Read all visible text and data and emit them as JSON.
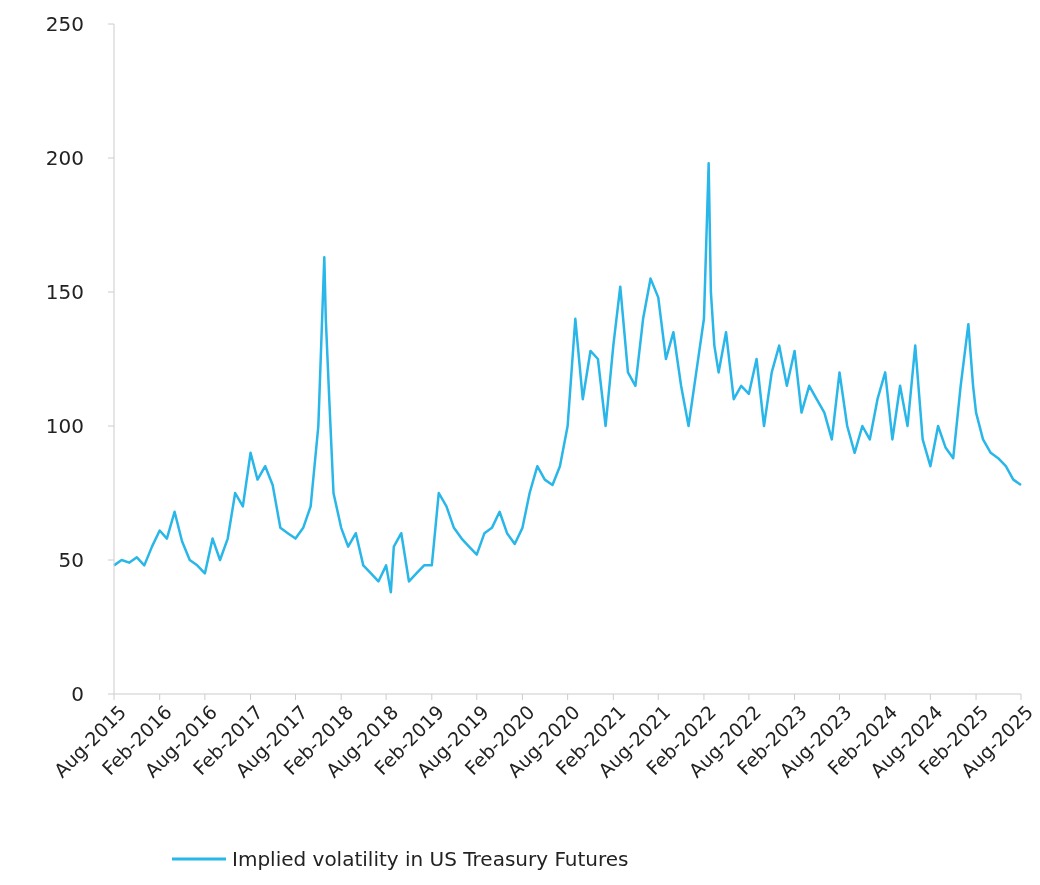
{
  "chart_data": {
    "type": "line",
    "legend": "bottom",
    "grid": false,
    "ylim": [
      0,
      250
    ],
    "yticks": [
      0,
      50,
      100,
      150,
      200,
      250
    ],
    "xlim": [
      "2015-08",
      "2025-08"
    ],
    "xticks": [
      {
        "value": "2015-08",
        "label": "Aug-2015"
      },
      {
        "value": "2016-02",
        "label": "Feb-2016"
      },
      {
        "value": "2016-08",
        "label": "Aug-2016"
      },
      {
        "value": "2017-02",
        "label": "Feb-2017"
      },
      {
        "value": "2017-08",
        "label": "Aug-2017"
      },
      {
        "value": "2018-02",
        "label": "Feb-2018"
      },
      {
        "value": "2018-08",
        "label": "Aug-2018"
      },
      {
        "value": "2019-02",
        "label": "Feb-2019"
      },
      {
        "value": "2019-08",
        "label": "Aug-2019"
      },
      {
        "value": "2020-02",
        "label": "Feb-2020"
      },
      {
        "value": "2020-08",
        "label": "Aug-2020"
      },
      {
        "value": "2021-02",
        "label": "Feb-2021"
      },
      {
        "value": "2021-08",
        "label": "Aug-2021"
      },
      {
        "value": "2022-02",
        "label": "Feb-2022"
      },
      {
        "value": "2022-08",
        "label": "Aug-2022"
      },
      {
        "value": "2023-02",
        "label": "Feb-2023"
      },
      {
        "value": "2023-08",
        "label": "Aug-2023"
      },
      {
        "value": "2024-02",
        "label": "Feb-2024"
      },
      {
        "value": "2024-08",
        "label": "Aug-2024"
      },
      {
        "value": "2025-02",
        "label": "Feb-2025"
      },
      {
        "value": "2025-08",
        "label": "Aug-2025"
      }
    ],
    "x": [
      "2015-08",
      "2015-09",
      "2015-10",
      "2015-11",
      "2015-12",
      "2016-01",
      "2016-02",
      "2016-03",
      "2016-04",
      "2016-05",
      "2016-06",
      "2016-07",
      "2016-08",
      "2016-09",
      "2016-10",
      "2016-11",
      "2016-12",
      "2017-01",
      "2017-02",
      "2017-03",
      "2017-04",
      "2017-05",
      "2017-06",
      "2017-07",
      "2017-08",
      "2017-09",
      "2017-10",
      "2017-11",
      "2017-11-25",
      "2017-12",
      "2017-12-15",
      "2018-01",
      "2018-02",
      "2018-03",
      "2018-04",
      "2018-05",
      "2018-06",
      "2018-07",
      "2018-08",
      "2018-08-20",
      "2018-09",
      "2018-10",
      "2018-11",
      "2018-12",
      "2019-01",
      "2019-02",
      "2019-03",
      "2019-04",
      "2019-05",
      "2019-06",
      "2019-07",
      "2019-08",
      "2019-09",
      "2019-10",
      "2019-11",
      "2019-12",
      "2020-01",
      "2020-02",
      "2020-03",
      "2020-04",
      "2020-05",
      "2020-06",
      "2020-07",
      "2020-08",
      "2020-09",
      "2020-10",
      "2020-11",
      "2020-12",
      "2021-01",
      "2021-02",
      "2021-03",
      "2021-04",
      "2021-05",
      "2021-06",
      "2021-07",
      "2021-08",
      "2021-09",
      "2021-10",
      "2021-11",
      "2021-12",
      "2022-01",
      "2022-02",
      "2022-02-20",
      "2022-03",
      "2022-03-15",
      "2022-04",
      "2022-05",
      "2022-06",
      "2022-07",
      "2022-08",
      "2022-09",
      "2022-10",
      "2022-11",
      "2022-12",
      "2023-01",
      "2023-02",
      "2023-03",
      "2023-04",
      "2023-05",
      "2023-06",
      "2023-07",
      "2023-08",
      "2023-09",
      "2023-10",
      "2023-11",
      "2023-12",
      "2024-01",
      "2024-02",
      "2024-03",
      "2024-04",
      "2024-05",
      "2024-06",
      "2024-07",
      "2024-08",
      "2024-09",
      "2024-10",
      "2024-11",
      "2024-12",
      "2025-01",
      "2025-01-20",
      "2025-02",
      "2025-03",
      "2025-04",
      "2025-05",
      "2025-06",
      "2025-07",
      "2025-08"
    ],
    "series": [
      {
        "name": "Implied volatility in US Treasury Futures",
        "color": "#29b6e8",
        "values": [
          48,
          50,
          49,
          51,
          48,
          55,
          61,
          58,
          68,
          57,
          50,
          48,
          45,
          58,
          50,
          58,
          75,
          70,
          90,
          80,
          85,
          78,
          62,
          60,
          58,
          62,
          70,
          100,
          163,
          140,
          110,
          75,
          62,
          55,
          60,
          48,
          45,
          42,
          48,
          38,
          55,
          60,
          42,
          45,
          48,
          48,
          75,
          70,
          62,
          58,
          55,
          52,
          60,
          62,
          68,
          60,
          56,
          62,
          75,
          85,
          80,
          78,
          85,
          100,
          140,
          110,
          128,
          125,
          100,
          130,
          152,
          120,
          115,
          140,
          155,
          148,
          125,
          135,
          115,
          100,
          120,
          140,
          198,
          150,
          130,
          120,
          135,
          110,
          115,
          112,
          125,
          100,
          120,
          130,
          115,
          128,
          105,
          115,
          110,
          105,
          95,
          120,
          100,
          90,
          100,
          95,
          110,
          120,
          95,
          115,
          100,
          130,
          95,
          85,
          100,
          92,
          88,
          115,
          138,
          115,
          105,
          95,
          90,
          88,
          85,
          80,
          78
        ]
      }
    ]
  }
}
